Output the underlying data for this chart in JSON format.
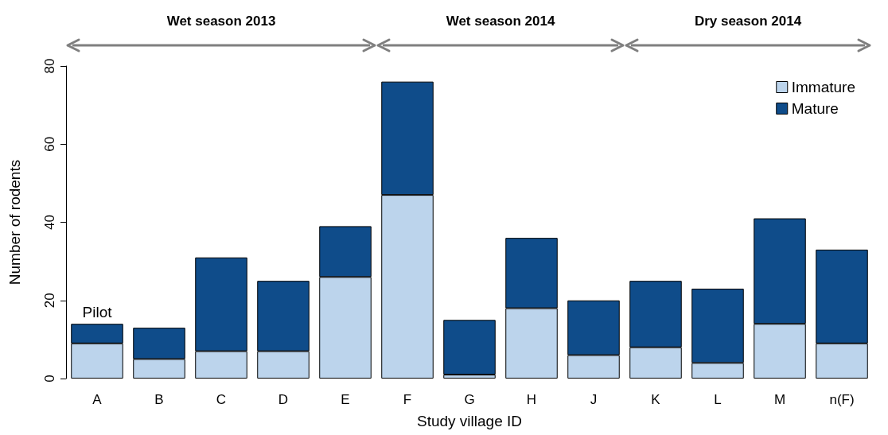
{
  "chart_data": {
    "type": "bar",
    "stacked": true,
    "xlabel": "Study village ID",
    "ylabel": "Number of rodents",
    "categories": [
      "A",
      "B",
      "C",
      "D",
      "E",
      "F",
      "G",
      "H",
      "J",
      "K",
      "L",
      "M",
      "n(F)"
    ],
    "series": [
      {
        "name": "Immature",
        "color": "#bcd4ec",
        "values": [
          9,
          5,
          7,
          7,
          26,
          47,
          1,
          18,
          6,
          8,
          4,
          14,
          9
        ]
      },
      {
        "name": "Mature",
        "color": "#0f4c8a",
        "values": [
          5,
          8,
          24,
          18,
          13,
          29,
          14,
          18,
          14,
          17,
          19,
          27,
          24
        ]
      }
    ],
    "ylim": [
      0,
      80
    ],
    "yticks": [
      0,
      20,
      40,
      60,
      80
    ],
    "grid": false,
    "legend": "top right",
    "annotations": [
      {
        "text": "Pilot",
        "x": "A",
        "y": 14
      },
      "Wet season 2013",
      "Wet season 2014",
      "Dry season 2014"
    ]
  }
}
